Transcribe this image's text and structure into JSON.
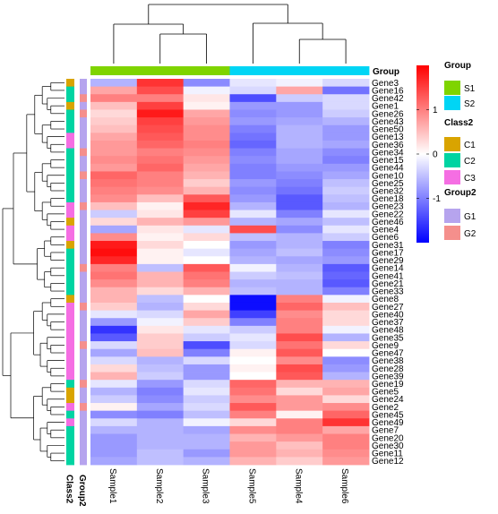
{
  "chart_data": {
    "type": "heatmap",
    "samples": [
      "Sample1",
      "Sample2",
      "Sample3",
      "Sample5",
      "Sample4",
      "Sample6"
    ],
    "genes": [
      "Gene3",
      "Gene16",
      "Gene42",
      "Gene1",
      "Gene26",
      "Gene43",
      "Gene50",
      "Gene13",
      "Gene36",
      "Gene34",
      "Gene15",
      "Gene44",
      "Gene10",
      "Gene25",
      "Gene32",
      "Gene18",
      "Gene23",
      "Gene22",
      "Gene46",
      "Gene4",
      "Gene6",
      "Gene31",
      "Gene17",
      "Gene29",
      "Gene14",
      "Gene41",
      "Gene21",
      "Gene33",
      "Gene8",
      "Gene27",
      "Gene40",
      "Gene37",
      "Gene48",
      "Gene35",
      "Gene9",
      "Gene47",
      "Gene38",
      "Gene28",
      "Gene39",
      "Gene19",
      "Gene5",
      "Gene24",
      "Gene2",
      "Gene45",
      "Gene49",
      "Gene7",
      "Gene20",
      "Gene30",
      "Gene11",
      "Gene12"
    ],
    "values": [
      [
        -0.6,
        1.6,
        -0.9,
        -0.2,
        -0.1,
        -0.3
      ],
      [
        0.7,
        1.4,
        -0.1,
        -0.3,
        0.7,
        -1.1
      ],
      [
        1.0,
        1.0,
        0.2,
        -1.4,
        -0.4,
        -0.3
      ],
      [
        0.5,
        1.5,
        0.1,
        -0.8,
        -0.8,
        -0.3
      ],
      [
        0.3,
        1.8,
        0.7,
        -0.9,
        -0.8,
        -0.4
      ],
      [
        0.4,
        1.5,
        0.8,
        -0.8,
        -0.7,
        -0.6
      ],
      [
        0.5,
        1.4,
        0.9,
        -1.0,
        -0.6,
        -0.8
      ],
      [
        0.7,
        1.3,
        0.9,
        -1.1,
        -0.6,
        -0.8
      ],
      [
        0.8,
        1.2,
        1.0,
        -1.2,
        -0.6,
        -0.7
      ],
      [
        0.8,
        1.0,
        0.9,
        -1.0,
        -0.7,
        -0.9
      ],
      [
        0.9,
        1.1,
        0.8,
        -0.9,
        -0.7,
        -1.0
      ],
      [
        0.8,
        1.2,
        0.7,
        -1.0,
        -0.8,
        -0.8
      ],
      [
        1.2,
        1.0,
        0.6,
        -1.0,
        -0.9,
        -0.7
      ],
      [
        1.1,
        1.0,
        0.4,
        -0.8,
        -1.0,
        -0.5
      ],
      [
        1.0,
        0.9,
        0.6,
        -0.9,
        -1.1,
        -0.4
      ],
      [
        0.9,
        0.5,
        1.3,
        -0.8,
        -1.3,
        -0.5
      ],
      [
        0.5,
        0.1,
        1.7,
        -0.6,
        -1.3,
        -0.6
      ],
      [
        -0.4,
        0.2,
        1.5,
        -0.2,
        -1.0,
        -0.2
      ],
      [
        0.3,
        0.6,
        0.8,
        -0.6,
        -0.7,
        -0.5
      ],
      [
        -0.7,
        0.2,
        -0.2,
        1.4,
        -0.9,
        -0.2
      ],
      [
        0.9,
        0.1,
        0.3,
        -0.5,
        -0.6,
        -0.4
      ],
      [
        1.8,
        0.3,
        0.0,
        -0.8,
        -0.6,
        -1.0
      ],
      [
        1.9,
        0.1,
        -0.2,
        -0.7,
        -0.5,
        -0.9
      ],
      [
        1.7,
        0.1,
        0.0,
        -0.6,
        -0.7,
        -0.8
      ],
      [
        1.0,
        -0.5,
        1.3,
        -0.1,
        -0.6,
        -1.3
      ],
      [
        1.1,
        0.6,
        1.1,
        -0.4,
        -0.5,
        -1.2
      ],
      [
        0.9,
        0.6,
        1.0,
        -0.6,
        -0.6,
        -1.3
      ],
      [
        0.6,
        0.3,
        0.6,
        -0.5,
        -0.6,
        -1.0
      ],
      [
        0.6,
        -0.5,
        0.0,
        -1.9,
        1.0,
        -0.1
      ],
      [
        0.4,
        -0.6,
        0.3,
        -1.9,
        1.2,
        0.5
      ],
      [
        -0.2,
        -0.3,
        0.7,
        -1.5,
        0.9,
        0.3
      ],
      [
        -0.8,
        -0.1,
        0.4,
        -1.0,
        1.0,
        0.3
      ],
      [
        -1.6,
        0.2,
        -0.2,
        -0.4,
        1.0,
        -0.1
      ],
      [
        -1.3,
        0.4,
        -0.4,
        -0.2,
        1.4,
        -0.6
      ],
      [
        -0.3,
        0.4,
        -1.4,
        -0.3,
        1.1,
        0.3
      ],
      [
        -0.7,
        0.5,
        -1.0,
        0.1,
        1.3,
        0.0
      ],
      [
        -0.3,
        -0.6,
        -0.3,
        0.0,
        0.9,
        -0.9
      ],
      [
        0.3,
        -0.5,
        -0.8,
        0.1,
        1.4,
        -0.8
      ],
      [
        0.6,
        -0.4,
        -0.8,
        0.0,
        1.3,
        -0.6
      ],
      [
        -0.2,
        -0.8,
        -0.3,
        1.2,
        0.6,
        0.6
      ],
      [
        -0.6,
        -1.0,
        -0.2,
        1.1,
        0.3,
        0.7
      ],
      [
        -0.4,
        -0.9,
        -0.4,
        0.9,
        0.8,
        0.3
      ],
      [
        0.1,
        -0.7,
        -0.3,
        1.3,
        0.8,
        0.9
      ],
      [
        -0.9,
        -1.0,
        -0.5,
        1.0,
        0.1,
        1.2
      ],
      [
        -0.3,
        -0.6,
        -0.1,
        0.3,
        1.0,
        1.6
      ],
      [
        -0.6,
        -0.6,
        -0.7,
        0.9,
        1.0,
        0.7
      ],
      [
        -0.8,
        -0.6,
        -0.6,
        0.6,
        0.8,
        1.0
      ],
      [
        -0.8,
        -0.6,
        -0.6,
        0.8,
        0.5,
        1.0
      ],
      [
        -0.8,
        -0.5,
        -0.8,
        0.8,
        0.6,
        0.9
      ],
      [
        -0.7,
        -0.5,
        -0.6,
        0.6,
        0.4,
        0.8
      ]
    ],
    "col_annotation_title": "Group",
    "col_group": [
      "S1",
      "S1",
      "S1",
      "S2",
      "S2",
      "S2"
    ],
    "row_annotation_titles": [
      "Class2",
      "Group2"
    ],
    "row_class2": [
      "C1",
      "C2",
      "C2",
      "C1",
      "C2",
      "C2",
      "C2",
      "C3",
      "C3",
      "C2",
      "C2",
      "C2",
      "C2",
      "C2",
      "C2",
      "C2",
      "C3",
      "C3",
      "C1",
      "C3",
      "C3",
      "C1",
      "C2",
      "C2",
      "C2",
      "C2",
      "C2",
      "C2",
      "C1",
      "C3",
      "C3",
      "C3",
      "C3",
      "C3",
      "C3",
      "C3",
      "C3",
      "C3",
      "C3",
      "C2",
      "C1",
      "C1",
      "C3",
      "C2",
      "C3",
      "C2",
      "C2",
      "C2",
      "C2",
      "C2"
    ],
    "row_group2": [
      "G1",
      "G1",
      "G2",
      "G1",
      "G2",
      "G1",
      "G1",
      "G1",
      "G1",
      "G2",
      "G1",
      "G1",
      "G2",
      "G1",
      "G1",
      "G1",
      "G2",
      "G1",
      "G1",
      "G1",
      "G1",
      "G1",
      "G1",
      "G1",
      "G2",
      "G1",
      "G1",
      "G1",
      "G1",
      "G2",
      "G1",
      "G1",
      "G1",
      "G1",
      "G2",
      "G1",
      "G1",
      "G1",
      "G1",
      "G2",
      "G1",
      "G1",
      "G2",
      "G1",
      "G1",
      "G1",
      "G1",
      "G1",
      "G1",
      "G1"
    ],
    "color_scale": {
      "min": -2,
      "mid": 0,
      "max": 2,
      "low": "#0000ff",
      "mid_color": "#ffffff",
      "high": "#ff0000",
      "ticks": [
        -1,
        0,
        1
      ]
    },
    "legends": [
      {
        "title": "Group",
        "items": [
          {
            "label": "S1",
            "color": "#7fd400"
          },
          {
            "label": "S2",
            "color": "#00d5f5"
          }
        ]
      },
      {
        "title": "Class2",
        "items": [
          {
            "label": "C1",
            "color": "#d9a400"
          },
          {
            "label": "C2",
            "color": "#00d4a2"
          },
          {
            "label": "C3",
            "color": "#f56ee3"
          }
        ]
      },
      {
        "title": "Group2",
        "items": [
          {
            "label": "G1",
            "color": "#b6a4ee"
          },
          {
            "label": "G2",
            "color": "#f58f8c"
          }
        ]
      }
    ],
    "legend_placement": "right"
  }
}
